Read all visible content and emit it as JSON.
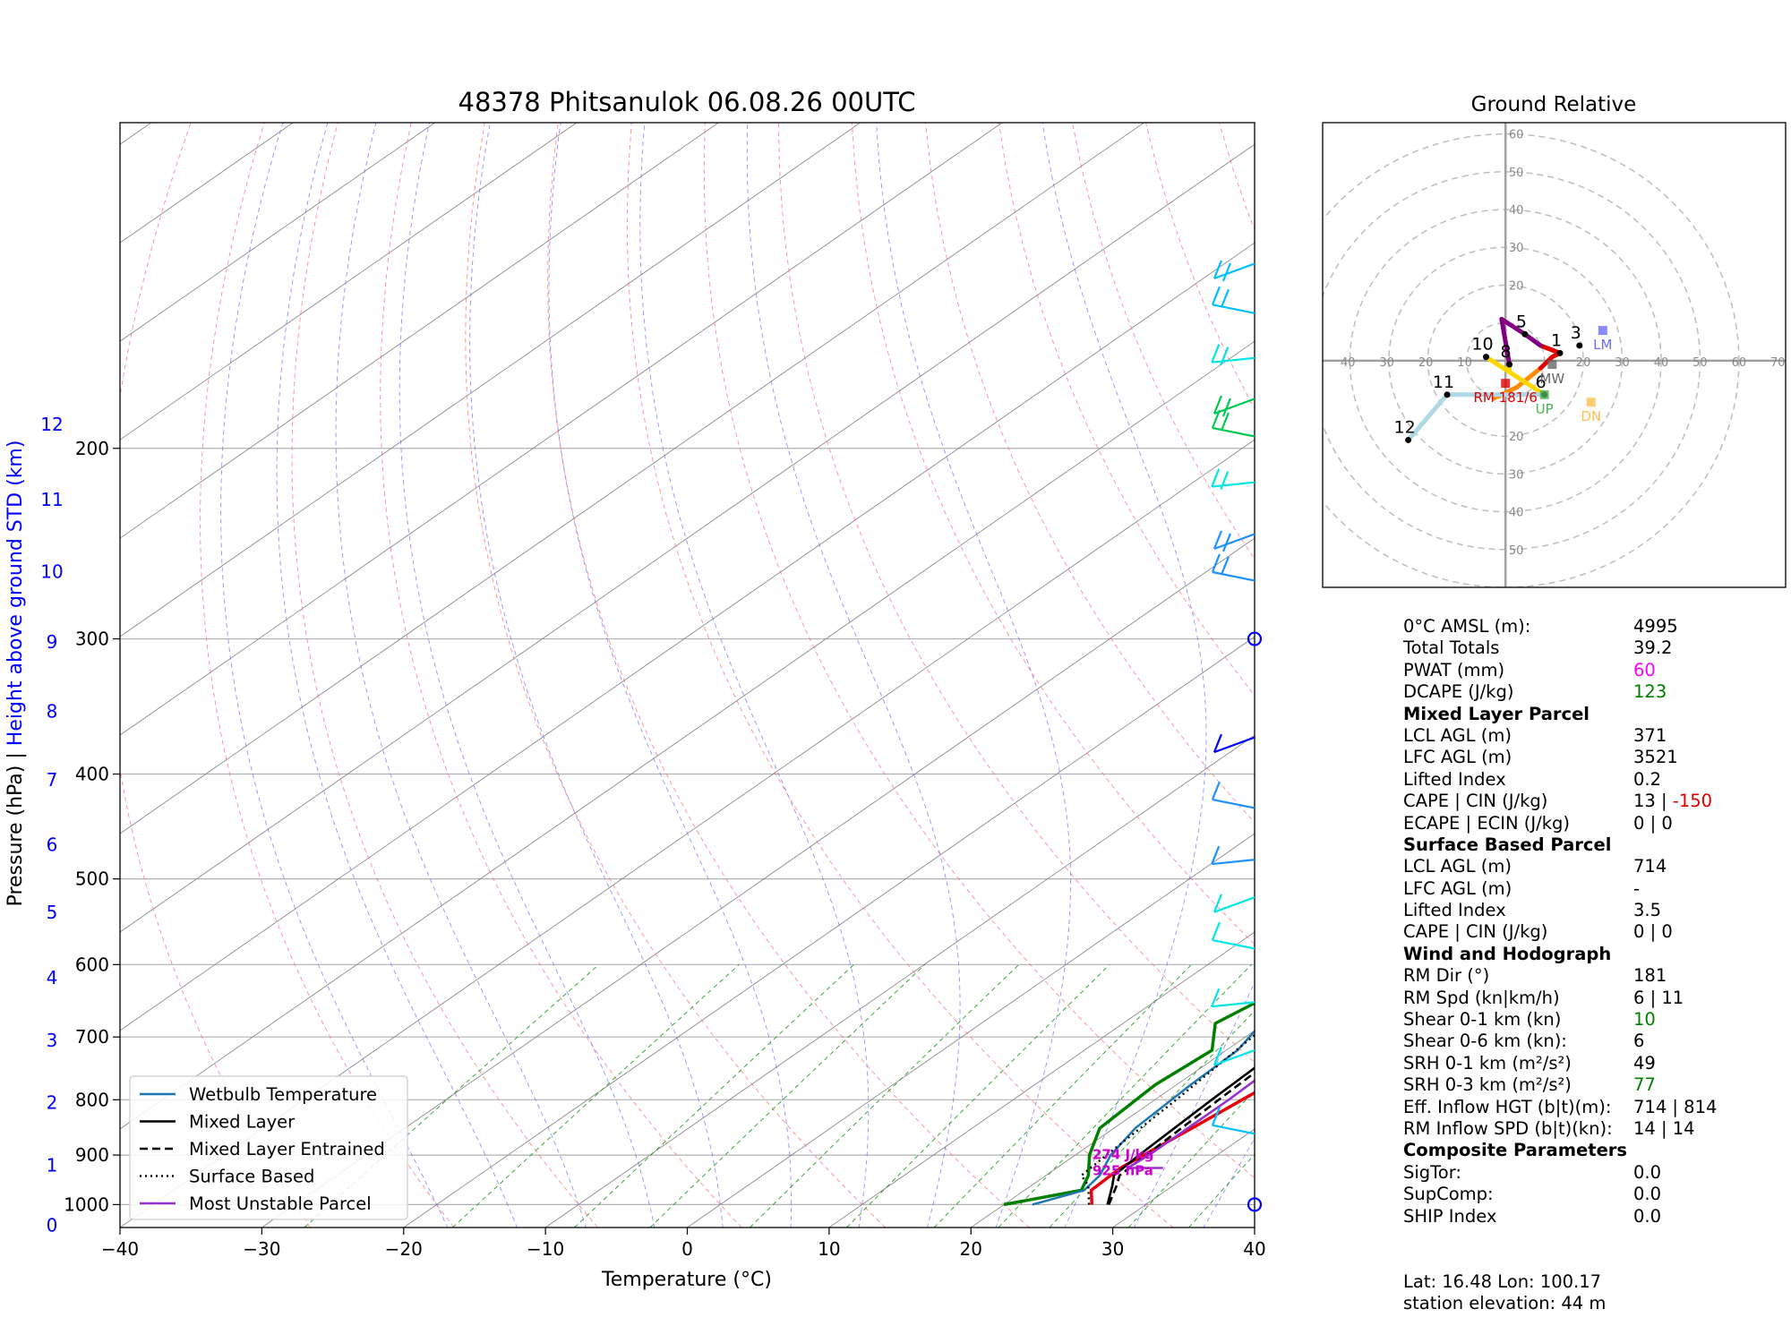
{
  "chart_data": [
    {
      "type": "line",
      "subtype": "skew-T log-P diagram",
      "title": "48378 Phitsanulok 06.08.26 00UTC",
      "xlabel": "Temperature (°C)",
      "ylabel": "Pressure (hPa)   |   Height above ground STD (km)",
      "xlim": [
        -40,
        40
      ],
      "ylim_pressure": [
        1050,
        100
      ],
      "x_ticks": [
        -40,
        -30,
        -20,
        -10,
        0,
        10,
        20,
        30,
        40
      ],
      "pressure_ticks": [
        1000,
        900,
        800,
        700,
        600,
        500,
        400,
        300,
        200
      ],
      "height_ticks": [
        {
          "km": 0,
          "p": 1045
        },
        {
          "km": 1,
          "p": 920
        },
        {
          "km": 2,
          "p": 805
        },
        {
          "km": 3,
          "p": 705
        },
        {
          "km": 4,
          "p": 617
        },
        {
          "km": 5,
          "p": 537
        },
        {
          "km": 6,
          "p": 465
        },
        {
          "km": 7,
          "p": 405
        },
        {
          "km": 8,
          "p": 350
        },
        {
          "km": 9,
          "p": 302
        },
        {
          "km": 10,
          "p": 260
        },
        {
          "km": 11,
          "p": 223
        },
        {
          "km": 12,
          "p": 190
        }
      ],
      "grid": true,
      "legend_position": "bottom-left",
      "legend": [
        "Wetbulb Temperature",
        "Mixed Layer",
        "Mixed Layer Entrained",
        "Surface Based",
        "Most Unstable Parcel"
      ],
      "colors": {
        "temperature": "#e8000b",
        "dewpoint": "#008000",
        "wetbulb": "#1f77b4",
        "parcel": "#000000",
        "mu_parcel": "#9932cc",
        "cape_fill": "#e88a8a",
        "isobar": "#b0b0b0",
        "isotherm": "#8a8a8a",
        "dry_adiabat": "#ff6f6f",
        "moist_adiabat": "#6b6bff",
        "mixing_ratio": "#2a9d2a",
        "height_axis": "#0000ff",
        "annotation": "#cc00cc"
      },
      "series": [
        {
          "name": "Temperature",
          "points": [
            [
              26.2,
              1000
            ],
            [
              24.7,
              970
            ],
            [
              24.5,
              925
            ],
            [
              25.5,
              850
            ],
            [
              26.5,
              775
            ],
            [
              24.5,
              710
            ],
            [
              23.0,
              660
            ],
            [
              22.0,
              600
            ],
            [
              22.2,
              560
            ],
            [
              22.4,
              520
            ],
            [
              22.2,
              480
            ],
            [
              20.5,
              440
            ],
            [
              18.5,
              400
            ],
            [
              16.5,
              350
            ],
            [
              15.2,
              300
            ],
            [
              9,
              250
            ],
            [
              3,
              200
            ],
            [
              -3,
              160
            ],
            [
              -2,
              155
            ],
            [
              0,
              150
            ],
            [
              2,
              140
            ],
            [
              -2,
              120
            ],
            [
              2,
              110
            ],
            [
              3,
              104
            ]
          ]
        },
        {
          "name": "Dewpoint",
          "points": [
            [
              20,
              1000
            ],
            [
              24,
              970
            ],
            [
              23,
              940
            ],
            [
              21,
              900
            ],
            [
              19,
              850
            ],
            [
              18.5,
              775
            ],
            [
              19,
              720
            ],
            [
              16.5,
              680
            ],
            [
              17.5,
              640
            ],
            [
              18,
              600
            ],
            [
              22.5,
              560
            ],
            [
              17,
              505
            ],
            [
              18,
              470
            ],
            [
              20.5,
              445
            ],
            [
              18.5,
              400
            ],
            [
              15.5,
              330
            ],
            [
              14.8,
              300
            ],
            [
              8,
              250
            ],
            [
              2,
              200
            ],
            [
              -1,
              180
            ],
            [
              -3,
              170
            ]
          ]
        },
        {
          "name": "Wetbulb Temperature",
          "points": [
            [
              22,
              1000
            ],
            [
              24.2,
              970
            ],
            [
              23.8,
              940
            ],
            [
              22.5,
              900
            ],
            [
              21.5,
              850
            ],
            [
              21,
              775
            ],
            [
              20.8,
              720
            ],
            [
              19.5,
              670
            ],
            [
              20,
              630
            ],
            [
              22.5,
              565
            ],
            [
              20.5,
              500
            ],
            [
              21,
              470
            ],
            [
              20.5,
              445
            ]
          ]
        },
        {
          "name": "Mixed Layer",
          "points": [
            [
              27.3,
              1000
            ],
            [
              25.7,
              960
            ],
            [
              24.8,
              940
            ],
            [
              24.5,
              900
            ],
            [
              24.0,
              800
            ],
            [
              23.6,
              700
            ],
            [
              22.3,
              580
            ],
            [
              20.5,
              460
            ],
            [
              18,
              400
            ],
            [
              14.5,
              300
            ],
            [
              6,
              240
            ],
            [
              -2.5,
              190
            ],
            [
              -9,
              155
            ],
            [
              -15.5,
              130
            ],
            [
              -19.5,
              120
            ],
            [
              -22.5,
              110
            ],
            [
              -25,
              104
            ]
          ]
        },
        {
          "name": "Mixed Layer Entrained",
          "points": [
            [
              27.4,
              1000
            ],
            [
              26.0,
              960
            ],
            [
              25.2,
              940
            ],
            [
              25.0,
              900
            ],
            [
              24.5,
              800
            ],
            [
              24.0,
              700
            ],
            [
              22.5,
              580
            ],
            [
              20.7,
              460
            ],
            [
              18.2,
              400
            ],
            [
              14.6,
              300
            ],
            [
              6,
              240
            ],
            [
              -2.5,
              190
            ],
            [
              -9,
              155
            ],
            [
              -15,
              130
            ],
            [
              -19,
              120
            ],
            [
              -22.2,
              110
            ],
            [
              -24.8,
              104
            ]
          ]
        },
        {
          "name": "Surface Based",
          "points": [
            [
              26,
              1000
            ],
            [
              24,
              960
            ],
            [
              22.5,
              940
            ],
            [
              22.2,
              900
            ],
            [
              21.5,
              800
            ],
            [
              20.5,
              700
            ],
            [
              19.3,
              600
            ],
            [
              16.8,
              490
            ],
            [
              13,
              400
            ],
            [
              6,
              300
            ],
            [
              -4,
              230
            ],
            [
              -13,
              175
            ],
            [
              -21,
              140
            ],
            [
              -30,
              115
            ],
            [
              -35,
              104
            ]
          ]
        },
        {
          "name": "Most Unstable Parcel",
          "points": [
            [
              27.5,
              925
            ],
            [
              25,
              925
            ],
            [
              25.2,
              900
            ],
            [
              25.2,
              800
            ],
            [
              24.8,
              700
            ],
            [
              24,
              600
            ],
            [
              22,
              500
            ],
            [
              20.5,
              440
            ],
            [
              17.5,
              370
            ],
            [
              15,
              300
            ],
            [
              7,
              245
            ],
            [
              -1,
              195
            ],
            [
              -8,
              155
            ],
            [
              -14,
              130
            ],
            [
              -18,
              115
            ],
            [
              -20,
              104
            ]
          ]
        }
      ],
      "annotations": [
        "274 J/kg",
        "925 hPa"
      ],
      "wind_barbs_right_axis": true
    },
    {
      "type": "scatter",
      "subtype": "hodograph",
      "title": "Ground Relative",
      "xlim": [
        -47,
        72
      ],
      "ylim": [
        -60,
        63
      ],
      "rings": [
        10,
        20,
        30,
        40,
        50,
        60
      ],
      "ring_labels": [
        "20",
        "30",
        "40",
        "50",
        "60",
        "70"
      ],
      "ring_labels_x": [
        "40",
        "30",
        "20",
        "10",
        "20",
        "30",
        "40",
        "50",
        "60",
        "70"
      ],
      "ring_labels_y": [
        "50",
        "40",
        "30",
        "20",
        "20",
        "30",
        "40",
        "50",
        "60"
      ],
      "hodo_path": [
        {
          "u": -3,
          "v": -10,
          "color": "#ff8c00"
        },
        {
          "u": 3,
          "v": -7,
          "color": "#ff8c00"
        },
        {
          "u": 9,
          "v": -2,
          "color": "#ff8c00"
        },
        {
          "u": 12,
          "v": 1,
          "color": "#e00000"
        },
        {
          "u": 14,
          "v": 2,
          "color": "#e00000"
        },
        {
          "u": 9,
          "v": 4,
          "color": "#e00000"
        },
        {
          "u": 5,
          "v": 7,
          "color": "#800080"
        },
        {
          "u": -1,
          "v": 11,
          "color": "#800080"
        },
        {
          "u": 0,
          "v": 5,
          "color": "#800080"
        },
        {
          "u": 1,
          "v": -1,
          "color": "#800080"
        },
        {
          "u": 1,
          "v": -3,
          "color": "#ffd700"
        },
        {
          "u": -5,
          "v": 1,
          "color": "#ffd700"
        },
        {
          "u": 10,
          "v": -9,
          "color": "#ffd700"
        },
        {
          "u": -15,
          "v": -9,
          "color": "#add8e6"
        },
        {
          "u": -25,
          "v": -21,
          "color": "#add8e6"
        }
      ],
      "height_labels": [
        {
          "text": "1",
          "u": 14,
          "v": 2
        },
        {
          "text": "3",
          "u": 19,
          "v": 4
        },
        {
          "text": "5",
          "u": 5,
          "v": 7
        },
        {
          "text": "6",
          "u": 10,
          "v": -9
        },
        {
          "text": "8",
          "u": 1,
          "v": -1
        },
        {
          "text": "10",
          "u": -5,
          "v": 1
        },
        {
          "text": "11",
          "u": -15,
          "v": -9
        },
        {
          "text": "12",
          "u": -25,
          "v": -21
        }
      ],
      "markers": [
        {
          "text": "LM",
          "u": 25,
          "v": 8,
          "color": "#6b6bff"
        },
        {
          "text": "MW",
          "u": 12,
          "v": -1,
          "color": "#666666"
        },
        {
          "text": "RM 181/6",
          "u": 0,
          "v": -6,
          "color": "#e00000"
        },
        {
          "text": "UP",
          "u": 10,
          "v": -9,
          "color": "#4caf50"
        },
        {
          "text": "DN",
          "u": 22,
          "v": -11,
          "color": "#ffbf4f"
        }
      ]
    }
  ],
  "params": [
    {
      "label": "0°C AMSL (m):",
      "value": "4995"
    },
    {
      "label": "Total Totals",
      "value": "39.2"
    },
    {
      "label": "PWAT (mm)",
      "value": "60",
      "color": "magenta"
    },
    {
      "label": "DCAPE (J/kg)",
      "value": "123",
      "color": "green"
    },
    {
      "label": "Mixed Layer Parcel",
      "header": true
    },
    {
      "label": "LCL AGL (m)",
      "value": "371"
    },
    {
      "label": "LFC AGL (m)",
      "value": "3521"
    },
    {
      "label": "Lifted Index",
      "value": "0.2"
    },
    {
      "label": "CAPE | CIN (J/kg)",
      "value": "13  |",
      "value2": "-150",
      "value2_color": "red"
    },
    {
      "label": "ECAPE | ECIN (J/kg)",
      "value": "0    | 0"
    },
    {
      "label": "Surface Based Parcel",
      "header": true
    },
    {
      "label": "LCL AGL (m)",
      "value": "714"
    },
    {
      "label": "LFC AGL (m)",
      "value": "-"
    },
    {
      "label": "Lifted Index",
      "value": "3.5"
    },
    {
      "label": "CAPE | CIN (J/kg)",
      "value": "0   | 0"
    },
    {
      "label": "Wind and Hodograph",
      "header": true
    },
    {
      "label": "RM Dir (°)",
      "value": "181"
    },
    {
      "label": "RM Spd (kn|km/h)",
      "value": "6 | 11"
    },
    {
      "label": "Shear 0-1 km (kn)",
      "value": "10",
      "color": "green"
    },
    {
      "label": "Shear 0-6 km (kn):",
      "value": "6"
    },
    {
      "label": "SRH 0-1 km (m²/s²)",
      "value": "49"
    },
    {
      "label": "SRH 0-3 km (m²/s²)",
      "value": "77",
      "color": "green"
    },
    {
      "label": "Eff. Inflow HGT (b|t)(m):",
      "value": "714 | 814"
    },
    {
      "label": "RM Inflow SPD (b|t)(kn):",
      "value": "14 | 14"
    },
    {
      "label": "Composite Parameters",
      "header": true
    },
    {
      "label": "SigTor:",
      "value": "0.0"
    },
    {
      "label": "SupComp:",
      "value": "0.0"
    },
    {
      "label": "SHIP Index",
      "value": "0.0"
    }
  ],
  "footer": {
    "line1": "Lat: 16.48  Lon: 100.17",
    "line2": "station elevation: 44 m"
  }
}
